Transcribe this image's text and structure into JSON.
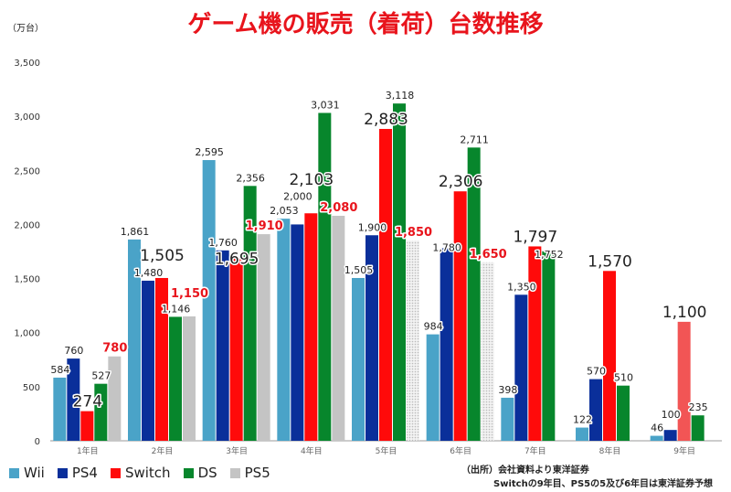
{
  "chart_data": {
    "type": "bar",
    "title": "ゲーム機の販売（着荷）台数推移",
    "ylabel": "（万台）",
    "ylim": [
      0,
      3500
    ],
    "yticks": [
      0,
      500,
      1000,
      1500,
      2000,
      2500,
      3000,
      3500
    ],
    "ytick_labels": [
      "0",
      "500",
      "1,000",
      "1,500",
      "2,000",
      "2,500",
      "3,000",
      "3,500"
    ],
    "categories": [
      "1年目",
      "2年目",
      "3年目",
      "4年目",
      "5年目",
      "6年目",
      "7年目",
      "8年目",
      "9年目"
    ],
    "grid": false,
    "legend_position": "bottom-left",
    "series": [
      {
        "name": "Wii",
        "color": "#4aa3c8",
        "values": [
          584,
          1861,
          2595,
          2053,
          1505,
          984,
          398,
          122,
          46
        ],
        "labels": [
          "584",
          "1,861",
          "2,595",
          "2,053",
          "1,505",
          "984",
          "398",
          "122",
          "46"
        ]
      },
      {
        "name": "PS4",
        "color": "#0a2f9a",
        "values": [
          760,
          1480,
          1760,
          2000,
          1900,
          1780,
          1350,
          570,
          100
        ],
        "labels": [
          "760",
          "1,480",
          "1,760",
          "2,000",
          "1,900",
          "1,780",
          "1,350",
          "570",
          "100"
        ]
      },
      {
        "name": "Switch",
        "color": "#ff0a0a",
        "values": [
          274,
          1505,
          1695,
          2103,
          2883,
          2306,
          1797,
          1570,
          1100
        ],
        "labels": [
          "274",
          "1,505",
          "1,695",
          "2,103",
          "2,883",
          "2,306",
          "1,797",
          "1,570",
          "1,100"
        ]
      },
      {
        "name": "DS",
        "color": "#07862c",
        "values": [
          527,
          1146,
          2356,
          3031,
          3118,
          2711,
          1752,
          510,
          235
        ],
        "labels": [
          "527",
          "1,146",
          "2,356",
          "3,031",
          "3,118",
          "2,711",
          "1,752",
          "510",
          "235"
        ]
      },
      {
        "name": "PS5",
        "color": "#c4c4c4",
        "values": [
          780,
          1150,
          1910,
          2080,
          1850,
          1650,
          null,
          null,
          null
        ],
        "labels": [
          "780",
          "1,150",
          "1,910",
          "2,080",
          "1,850",
          "1,650",
          null,
          null,
          null
        ]
      }
    ],
    "notes": [
      "（出所）会社資料より東洋証券",
      "Switchの9年目、PS5の5及び6年目は東洋証券予想"
    ]
  }
}
